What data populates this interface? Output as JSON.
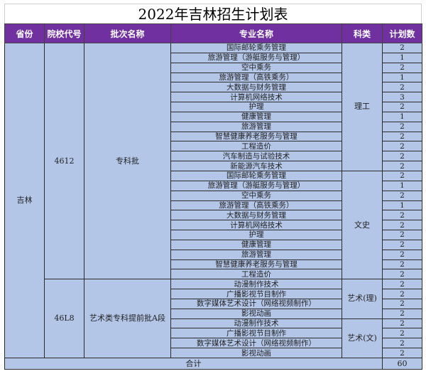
{
  "title": "2022年吉林招生计划表",
  "headers": [
    "省份",
    "院校代号",
    "批次名称",
    "专业名称",
    "科类",
    "计划数"
  ],
  "colors": {
    "header_bg": "#7030a0",
    "body_bg": "#b4c6e7"
  },
  "province": "吉林",
  "groups": [
    {
      "school_code": "4612",
      "batch": "专科批",
      "categories": [
        {
          "name": "理工",
          "rows": [
            {
              "major": "国际邮轮乘务管理",
              "count": "2"
            },
            {
              "major": "旅游管理（游艇服务与管理）",
              "count": "1"
            },
            {
              "major": "空中乘务",
              "count": "2"
            },
            {
              "major": "旅游管理（高铁乘务）",
              "count": "1"
            },
            {
              "major": "大数据与财务管理",
              "count": "2"
            },
            {
              "major": "计算机网络技术",
              "count": "3"
            },
            {
              "major": "护理",
              "count": "2"
            },
            {
              "major": "健康管理",
              "count": "1"
            },
            {
              "major": "旅游管理",
              "count": "2"
            },
            {
              "major": "智慧健康养老服务与管理",
              "count": "2"
            },
            {
              "major": "工程造价",
              "count": "2"
            },
            {
              "major": "汽车制造与试验技术",
              "count": "2"
            },
            {
              "major": "新能源汽车技术",
              "count": "2"
            }
          ]
        },
        {
          "name": "文史",
          "rows": [
            {
              "major": "国际邮轮乘务管理",
              "count": "2"
            },
            {
              "major": "旅游管理（游艇服务与管理）",
              "count": "1"
            },
            {
              "major": "空中乘务",
              "count": "2"
            },
            {
              "major": "旅游管理（高铁乘务）",
              "count": "1"
            },
            {
              "major": "大数据与财务管理",
              "count": "2"
            },
            {
              "major": "计算机网络技术",
              "count": "2"
            },
            {
              "major": "护理",
              "count": "2"
            },
            {
              "major": "健康管理",
              "count": "2"
            },
            {
              "major": "旅游管理",
              "count": "2"
            },
            {
              "major": "智慧健康养老服务与管理",
              "count": "2"
            },
            {
              "major": "工程造价",
              "count": "2"
            }
          ]
        }
      ]
    },
    {
      "school_code": "46L8",
      "batch": "艺术类专科提前批A段",
      "categories": [
        {
          "name": "艺术(理)",
          "rows": [
            {
              "major": "动漫制作技术",
              "count": "2"
            },
            {
              "major": "广播影视节目制作",
              "count": "2"
            },
            {
              "major": "数字媒体艺术设计（网络视频制作）",
              "count": "2"
            },
            {
              "major": "影视动画",
              "count": "2"
            }
          ]
        },
        {
          "name": "艺术(文)",
          "rows": [
            {
              "major": "动漫制作技术",
              "count": "2"
            },
            {
              "major": "广播影视节目制作",
              "count": "2"
            },
            {
              "major": "数字媒体艺术设计（网络视频制作）",
              "count": "2"
            },
            {
              "major": "影视动画",
              "count": "2"
            }
          ]
        }
      ]
    }
  ],
  "total": {
    "label": "合计",
    "count": "60"
  }
}
